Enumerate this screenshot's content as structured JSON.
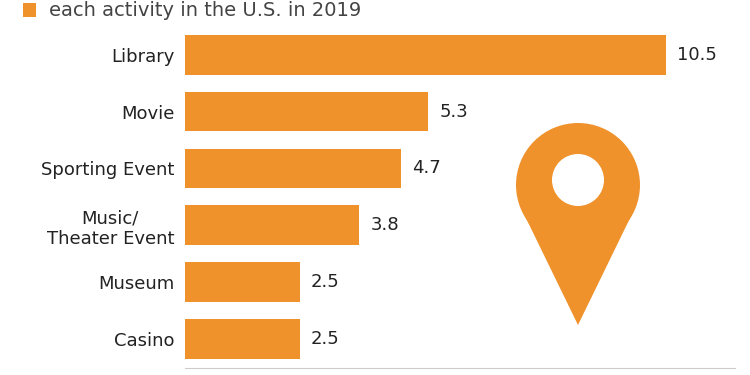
{
  "chart_data": {
    "type": "bar",
    "orientation": "horizontal",
    "subtitle": "each activity in the U.S. in 2019",
    "categories": [
      "Library",
      "Movie",
      "Sporting Event",
      "Music/\nTheater Event",
      "Museum",
      "Casino"
    ],
    "values": [
      10.5,
      5.3,
      4.7,
      3.8,
      2.5,
      2.5
    ],
    "color": "#f0922b",
    "xlim": [
      0,
      12
    ],
    "xticks": [],
    "data_labels": true,
    "tick_labels": false,
    "grid": false
  }
}
